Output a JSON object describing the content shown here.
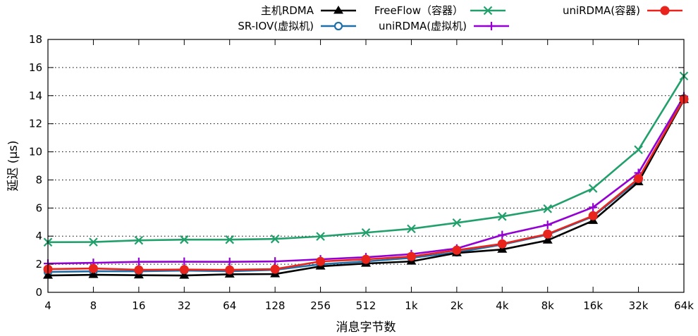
{
  "chart_data": {
    "type": "line",
    "xlabel": "消息字节数",
    "ylabel": "延迟 (μs)",
    "categories": [
      "4",
      "8",
      "16",
      "32",
      "64",
      "128",
      "256",
      "512",
      "1k",
      "2k",
      "4k",
      "8k",
      "16k",
      "32k",
      "64k"
    ],
    "ylim": [
      0,
      18
    ],
    "yticks": [
      "0",
      "2",
      "4",
      "6",
      "8",
      "10",
      "12",
      "14",
      "16",
      "18"
    ],
    "grid": "horizontal-dotted",
    "legend_position": "top",
    "series": [
      {
        "name": "主机RDMA",
        "color": "#000000",
        "marker": "triangle",
        "values": [
          1.2,
          1.25,
          1.22,
          1.2,
          1.28,
          1.3,
          1.85,
          2.05,
          2.2,
          2.8,
          3.05,
          3.7,
          5.1,
          7.85,
          13.7
        ]
      },
      {
        "name": "SR-IOV(虚拟机)",
        "color": "#1f6fa8",
        "marker": "circle-open",
        "values": [
          1.45,
          1.5,
          1.5,
          1.55,
          1.5,
          1.6,
          2.0,
          2.2,
          2.45,
          2.85,
          3.4,
          4.1,
          5.4,
          8.0,
          13.8
        ]
      },
      {
        "name": "FreeFlow（容器）",
        "color": "#22a06b",
        "marker": "x",
        "values": [
          3.57,
          3.58,
          3.7,
          3.75,
          3.75,
          3.8,
          3.98,
          4.25,
          4.52,
          4.95,
          5.4,
          5.95,
          7.4,
          10.15,
          15.4
        ]
      },
      {
        "name": "uniRDMA(虚拟机)",
        "color": "#9400d3",
        "marker": "plus",
        "values": [
          2.05,
          2.1,
          2.17,
          2.18,
          2.17,
          2.2,
          2.35,
          2.5,
          2.72,
          3.12,
          4.08,
          4.8,
          6.05,
          8.5,
          13.95
        ]
      },
      {
        "name": "uniRDMA(容器)",
        "color": "#e8241c",
        "marker": "circle-filled",
        "values": [
          1.65,
          1.7,
          1.6,
          1.62,
          1.6,
          1.65,
          2.2,
          2.35,
          2.55,
          3.0,
          3.45,
          4.15,
          5.45,
          8.1,
          13.75
        ]
      }
    ]
  }
}
